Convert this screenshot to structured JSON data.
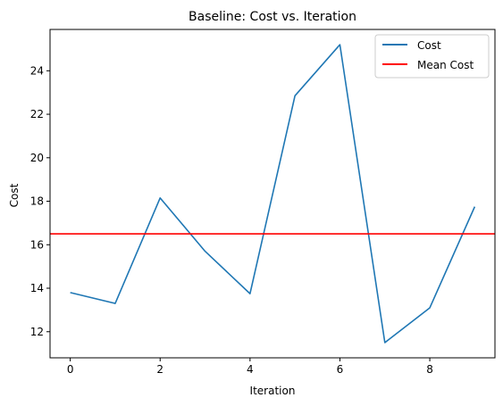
{
  "chart_data": {
    "type": "line",
    "title": "Baseline: Cost vs. Iteration",
    "xlabel": "Iteration",
    "ylabel": "Cost",
    "x": [
      0,
      1,
      2,
      3,
      4,
      5,
      6,
      7,
      8,
      9
    ],
    "series": [
      {
        "name": "Cost",
        "color": "#1f77b4",
        "values": [
          13.8,
          13.3,
          18.15,
          15.7,
          13.75,
          22.85,
          25.2,
          11.5,
          13.1,
          17.75
        ]
      }
    ],
    "reference_lines": [
      {
        "name": "Mean Cost",
        "orientation": "horizontal",
        "value": 16.5,
        "color": "#ff0000"
      }
    ],
    "xlim": [
      -0.45,
      9.45
    ],
    "ylim": [
      10.8,
      25.9
    ],
    "xticks": [
      0,
      2,
      4,
      6,
      8
    ],
    "xtick_labels": [
      "0",
      "2",
      "4",
      "6",
      "8"
    ],
    "yticks": [
      12,
      14,
      16,
      18,
      20,
      22,
      24
    ],
    "ytick_labels": [
      "12",
      "14",
      "16",
      "18",
      "20",
      "22",
      "24"
    ],
    "grid": false,
    "legend_position": "top-right"
  }
}
